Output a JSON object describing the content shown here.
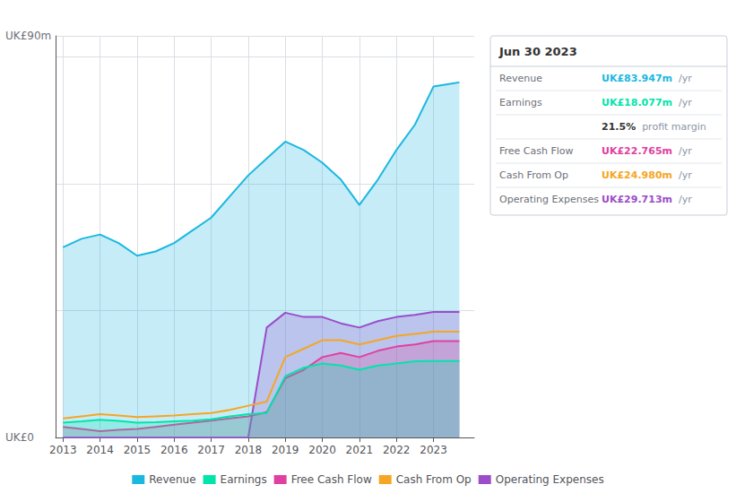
{
  "chart_data": {
    "type": "line",
    "x": [
      2013,
      2013.5,
      2014,
      2014.5,
      2015,
      2015.5,
      2016,
      2016.5,
      2017,
      2017.5,
      2018,
      2018.5,
      2019,
      2019.5,
      2020,
      2020.5,
      2021,
      2021.5,
      2022,
      2022.5,
      2023,
      2023.7
    ],
    "series": [
      {
        "name": "Revenue",
        "color": "#1ab8e0",
        "type": "area",
        "values": [
          45,
          47,
          48,
          46,
          43,
          44,
          46,
          49,
          52,
          57,
          62,
          66,
          70,
          68,
          65,
          61,
          55,
          61,
          68,
          74,
          83,
          84
        ]
      },
      {
        "name": "Earnings",
        "color": "#00e5aa",
        "type": "area",
        "values": [
          3.5,
          3.8,
          4.2,
          3.9,
          3.5,
          3.6,
          3.8,
          4.0,
          4.3,
          5.0,
          5.5,
          5.8,
          14.5,
          16.5,
          17.5,
          17.0,
          16.0,
          17.0,
          17.5,
          18.0,
          18.1,
          18.1
        ]
      },
      {
        "name": "Free Cash Flow",
        "color": "#e040a0",
        "type": "area",
        "values": [
          2.5,
          2.0,
          1.5,
          1.8,
          2.0,
          2.5,
          3.0,
          3.5,
          4.0,
          4.5,
          5.0,
          6.0,
          14.0,
          16.0,
          19.0,
          20.0,
          19.0,
          20.5,
          21.5,
          22.0,
          22.8,
          22.8
        ]
      },
      {
        "name": "Cash From Op",
        "color": "#f5a623",
        "type": "line",
        "values": [
          4.5,
          5.0,
          5.5,
          5.2,
          4.8,
          5.0,
          5.2,
          5.5,
          5.8,
          6.5,
          7.5,
          8.5,
          19.0,
          21.0,
          23.0,
          23.0,
          22.0,
          23.0,
          24.0,
          24.5,
          25.0,
          25.0
        ]
      },
      {
        "name": "Operating Expenses",
        "color": "#9b4dca",
        "type": "area",
        "values": [
          0,
          0,
          0,
          0,
          0,
          0,
          0,
          0,
          0,
          0,
          0,
          26.0,
          29.5,
          28.5,
          28.5,
          27.0,
          26.0,
          27.5,
          28.5,
          29.0,
          29.7,
          29.7
        ]
      }
    ],
    "xlim": [
      2012.8,
      2024.1
    ],
    "xticks": [
      2013,
      2014,
      2015,
      2016,
      2017,
      2018,
      2019,
      2020,
      2021,
      2022,
      2023
    ],
    "ylim": [
      0,
      95
    ],
    "yticks": [
      0,
      30,
      60,
      90
    ],
    "grid": true,
    "tick_labels": "x",
    "legend": "bottom",
    "annotations": [
      "UK£90m",
      "UK£0"
    ],
    "info_box": {
      "title": "Jun 30 2023",
      "rows": [
        {
          "label": "Revenue",
          "value": "UK£83.947m",
          "unit": "/yr",
          "color": "#1ab8e0"
        },
        {
          "label": "Earnings",
          "value": "UK£18.077m",
          "unit": "/yr",
          "color": "#00e5aa"
        },
        {
          "value": "21.5%",
          "unit": "profit margin",
          "color": "#ffffff"
        },
        {
          "label": "Free Cash Flow",
          "value": "UK£22.765m",
          "unit": "/yr",
          "color": "#e040a0"
        },
        {
          "label": "Cash From Op",
          "value": "UK£24.980m",
          "unit": "/yr",
          "color": "#f5a623"
        },
        {
          "label": "Operating Expenses",
          "value": "UK£29.713m",
          "unit": "/yr",
          "color": "#9b4dca"
        }
      ]
    }
  }
}
